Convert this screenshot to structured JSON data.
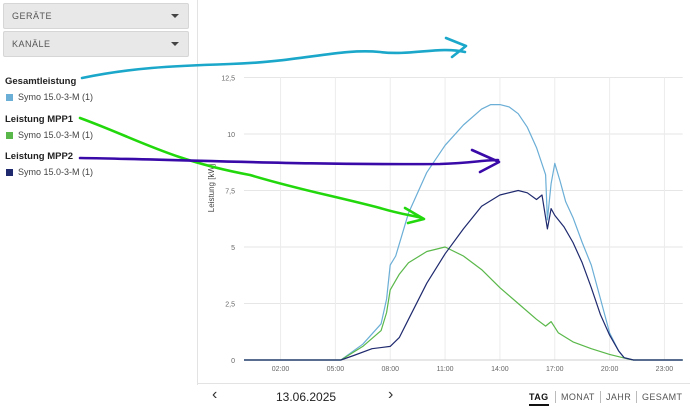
{
  "sidebar": {
    "dropdown_devices": "GERÄTE",
    "dropdown_channels": "KANÄLE",
    "groups": [
      {
        "title": "Gesamtleistung",
        "item": "Symo 15.0-3-M (1)",
        "color": "#6baed6"
      },
      {
        "title": "Leistung MPP1",
        "item": "Symo 15.0-3-M (1)",
        "color": "#5ab84a"
      },
      {
        "title": "Leistung MPP2",
        "item": "Symo 15.0-3-M (1)",
        "color": "#1f2a6e"
      }
    ]
  },
  "footer": {
    "date": "13.06.2025",
    "prev_icon": "chevron-left-icon",
    "next_icon": "chevron-right-icon",
    "tabs": [
      "TAG",
      "MONAT",
      "JAHR",
      "GESAMT"
    ],
    "active_tab": "TAG"
  },
  "chart_data": {
    "type": "line",
    "ylabel": "Leistung [kW]",
    "x_ticks": [
      "02:00",
      "05:00",
      "08:00",
      "11:00",
      "14:00",
      "17:00",
      "20:00",
      "23:00"
    ],
    "y_ticks": [
      "0",
      "2,5",
      "5",
      "7,5",
      "10",
      "12,5"
    ],
    "ylim": [
      0,
      12.5
    ],
    "xlim_hours": [
      0,
      24
    ],
    "grid": true,
    "series": [
      {
        "name": "Gesamtleistung",
        "color": "#6baed6",
        "x": [
          0,
          5.3,
          6.5,
          7.5,
          7.8,
          8.0,
          8.3,
          9,
          10,
          11,
          12,
          13,
          13.5,
          14,
          14.5,
          15,
          15.5,
          16,
          16.5,
          16.6,
          16.8,
          17,
          17.3,
          17.6,
          18,
          18.5,
          19,
          19.5,
          20,
          20.5,
          20.8,
          21.3,
          24
        ],
        "y": [
          0,
          0,
          0.7,
          1.6,
          2.7,
          4.2,
          4.6,
          6.5,
          8.3,
          9.5,
          10.4,
          11.1,
          11.3,
          11.3,
          11.2,
          10.9,
          10.3,
          9.4,
          8.2,
          6.2,
          7.8,
          8.7,
          7.9,
          7.0,
          6.3,
          5.2,
          4.2,
          2.7,
          1.2,
          0.4,
          0.1,
          0,
          0
        ]
      },
      {
        "name": "Leistung MPP1",
        "color": "#5ab84a",
        "x": [
          0,
          5.3,
          6.5,
          7.5,
          7.8,
          8.0,
          8.5,
          9,
          10,
          11,
          12,
          13,
          14,
          15,
          16,
          16.5,
          16.8,
          17.2,
          18,
          19,
          20,
          21,
          21.3,
          24
        ],
        "y": [
          0,
          0,
          0.6,
          1.3,
          2.1,
          3.1,
          3.8,
          4.3,
          4.8,
          5.0,
          4.6,
          4.0,
          3.2,
          2.5,
          1.8,
          1.5,
          1.7,
          1.2,
          0.8,
          0.5,
          0.25,
          0.05,
          0,
          0
        ]
      },
      {
        "name": "Leistung MPP2",
        "color": "#1f2a6e",
        "x": [
          0,
          5.3,
          6,
          7,
          8,
          8.5,
          9,
          10,
          11,
          12,
          13,
          14,
          15,
          15.5,
          16,
          16.3,
          16.6,
          16.8,
          17,
          17.5,
          18,
          18.5,
          19,
          19.5,
          20,
          20.5,
          20.8,
          21.3,
          24
        ],
        "y": [
          0,
          0,
          0.2,
          0.5,
          0.6,
          1.0,
          1.8,
          3.4,
          4.7,
          5.8,
          6.8,
          7.3,
          7.5,
          7.4,
          7.1,
          7.3,
          5.8,
          6.7,
          6.4,
          5.9,
          5.2,
          4.3,
          3.2,
          2.0,
          1.1,
          0.4,
          0.1,
          0,
          0
        ]
      }
    ]
  }
}
